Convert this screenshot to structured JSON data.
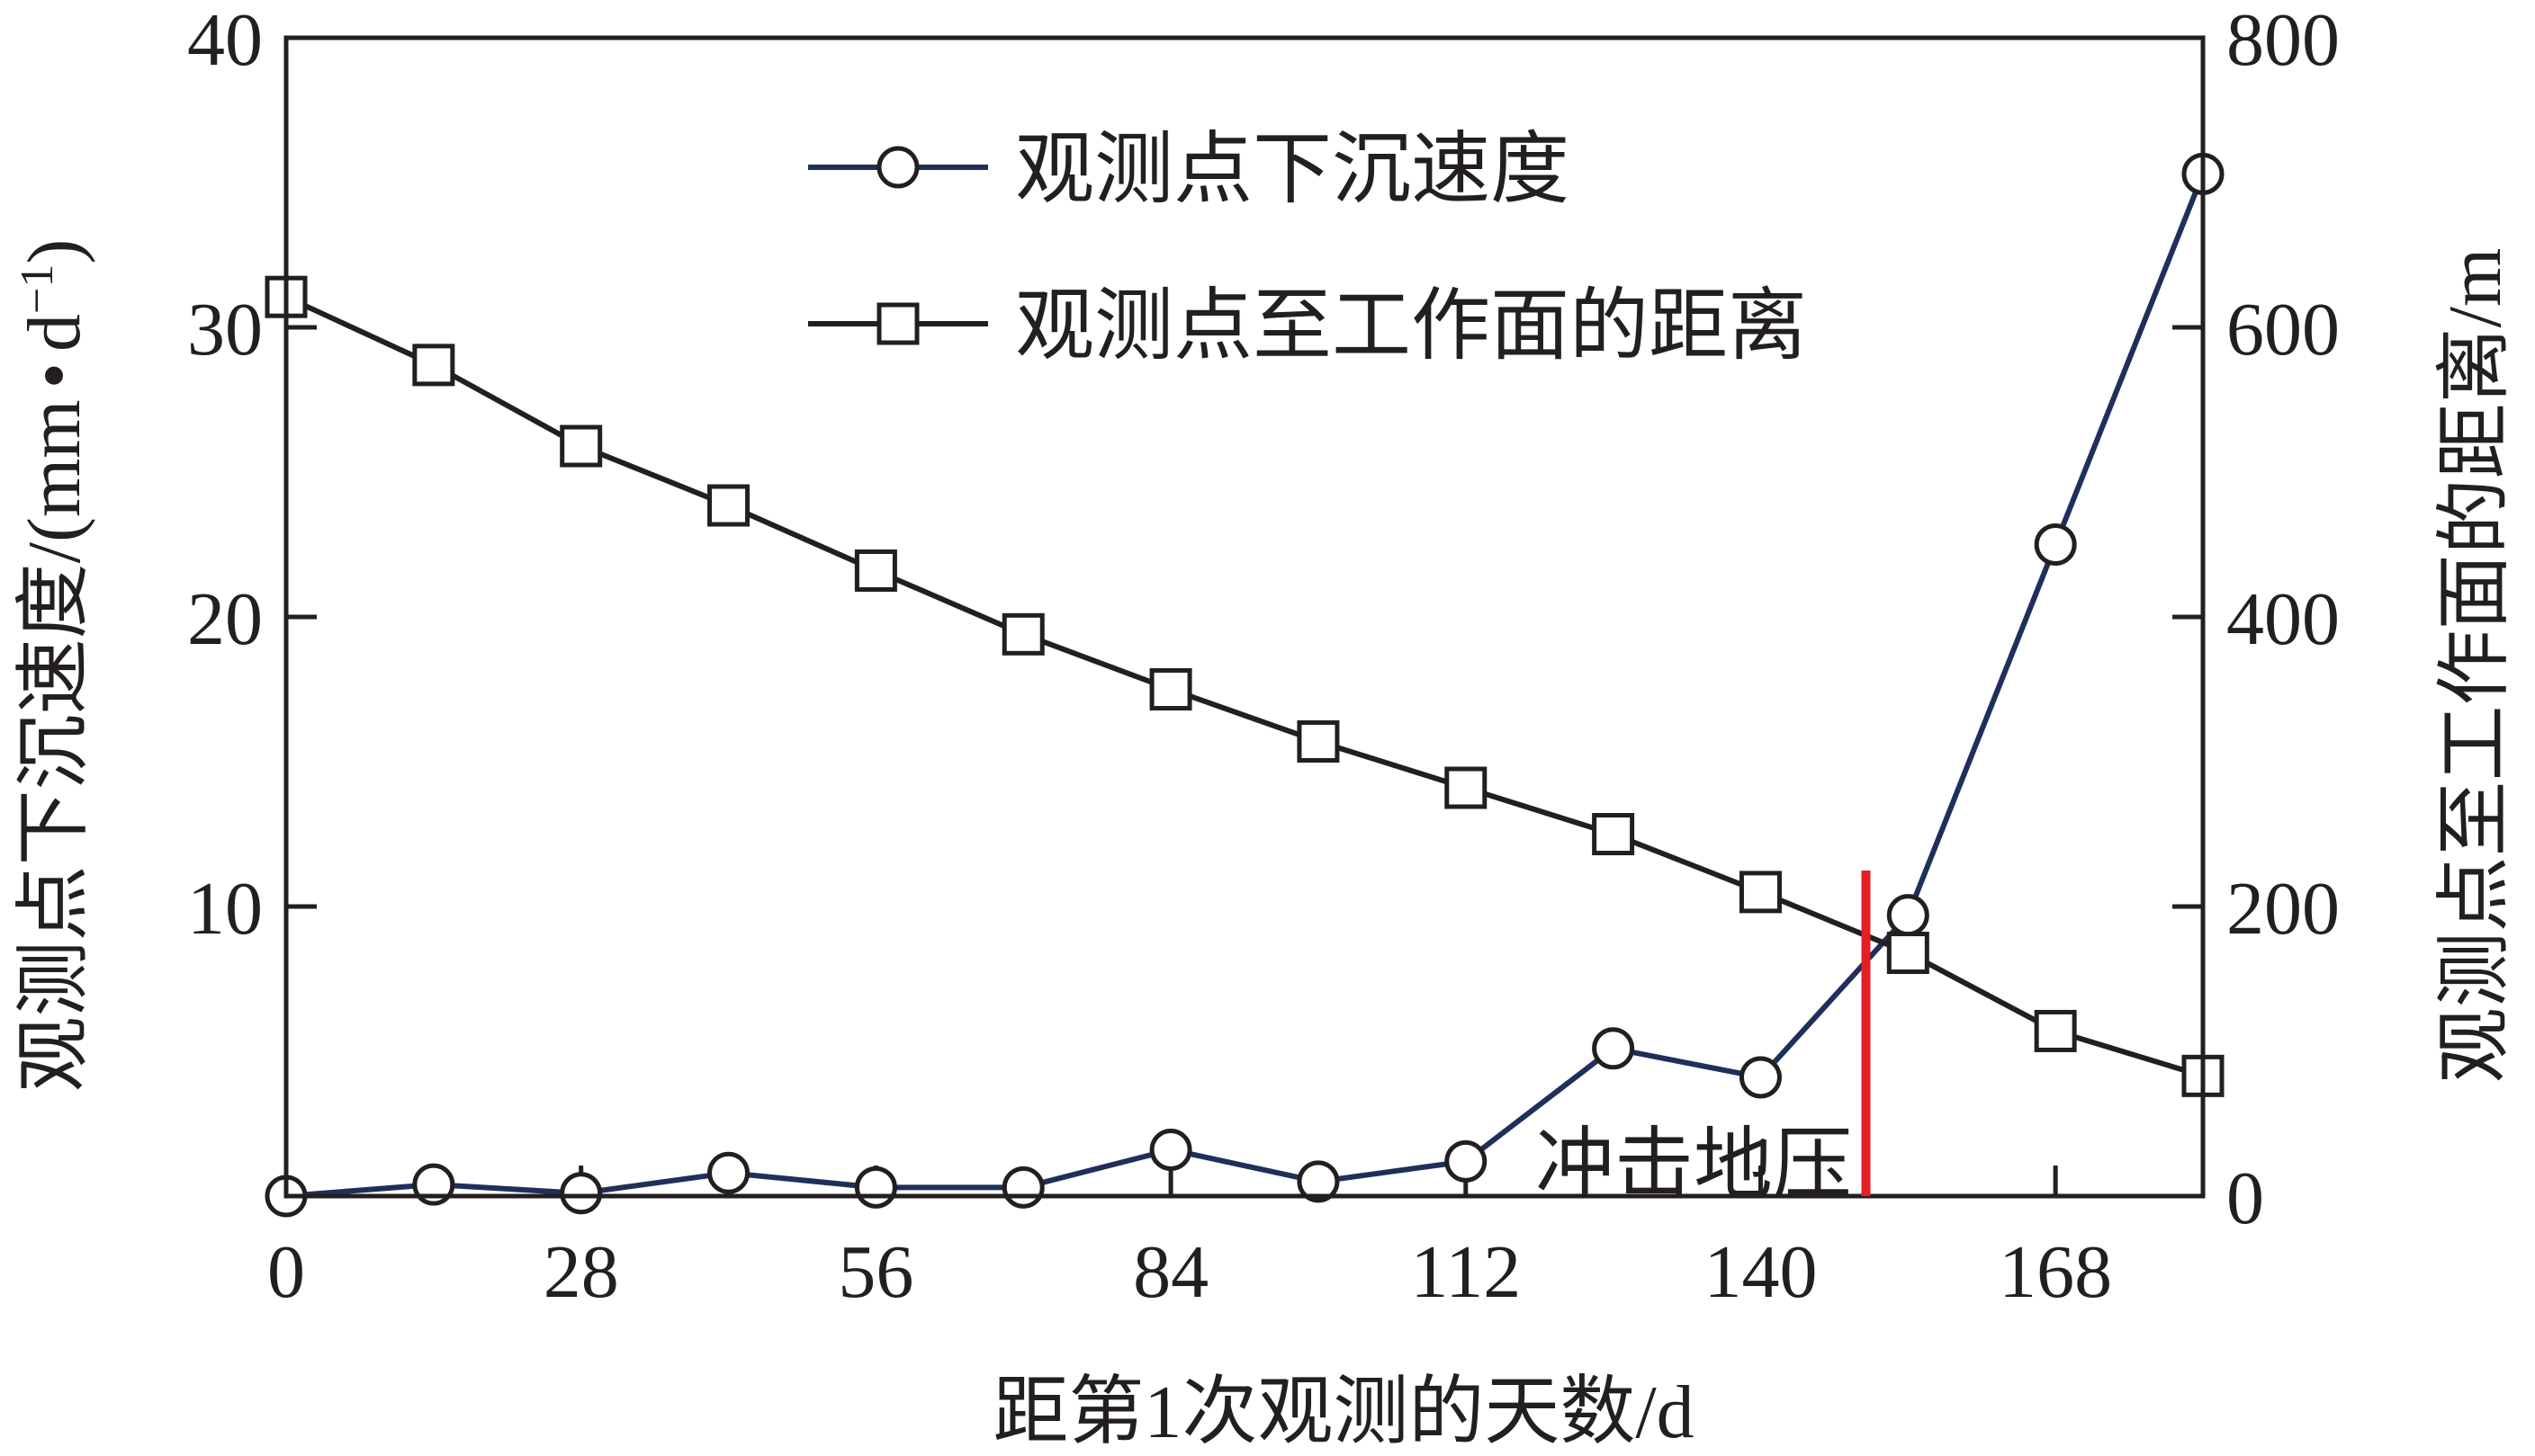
{
  "chart_data": {
    "type": "line",
    "xlabel": "距第1次观测的天数/d",
    "ylabel_left": "观测点下沉速度/(mm·d⁻¹)",
    "ylabel_left_main": "观测点下沉速度/(mm",
    "ylabel_left_dot": "•",
    "ylabel_left_unit_d": "d",
    "ylabel_left_exp": "−1",
    "ylabel_left_close": ")",
    "ylabel_right": "观测点至工作面的距离/m",
    "x_ticks": [
      "0",
      "28",
      "56",
      "84",
      "112",
      "140",
      "168"
    ],
    "x_tick_values": [
      0,
      28,
      56,
      84,
      112,
      140,
      168
    ],
    "xlim": [
      0,
      182
    ],
    "y_left_ticks": [
      "10",
      "20",
      "30",
      "40"
    ],
    "y_left_tick_values": [
      10,
      20,
      30,
      40
    ],
    "ylim_left": [
      0,
      40
    ],
    "y_right_ticks": [
      "0",
      "200",
      "400",
      "600",
      "800"
    ],
    "y_right_tick_values": [
      0,
      200,
      400,
      600,
      800
    ],
    "ylim_right": [
      0,
      800
    ],
    "legend_position": "top-center",
    "series": [
      {
        "name": "观测点下沉速度",
        "axis": "left",
        "marker": "circle",
        "color": "#1f2f5c",
        "x": [
          0,
          14,
          28,
          42,
          56,
          70,
          84,
          98,
          112,
          126,
          140,
          154,
          168,
          182
        ],
        "y": [
          0.0,
          0.4,
          0.1,
          0.8,
          0.3,
          0.3,
          1.6,
          0.5,
          1.2,
          5.1,
          4.1,
          9.7,
          22.5,
          35.3
        ]
      },
      {
        "name": "观测点至工作面的距离",
        "axis": "right",
        "marker": "square",
        "color": "#231f20",
        "x": [
          0,
          14,
          28,
          42,
          56,
          70,
          84,
          98,
          112,
          126,
          140,
          154,
          168,
          182
        ],
        "y": [
          621,
          574,
          518,
          477,
          432,
          388,
          350,
          314,
          282,
          250,
          210,
          168,
          114,
          83
        ]
      }
    ],
    "annotation": {
      "text": "冲击地压",
      "x": 150,
      "line_color": "#e31e24"
    }
  }
}
